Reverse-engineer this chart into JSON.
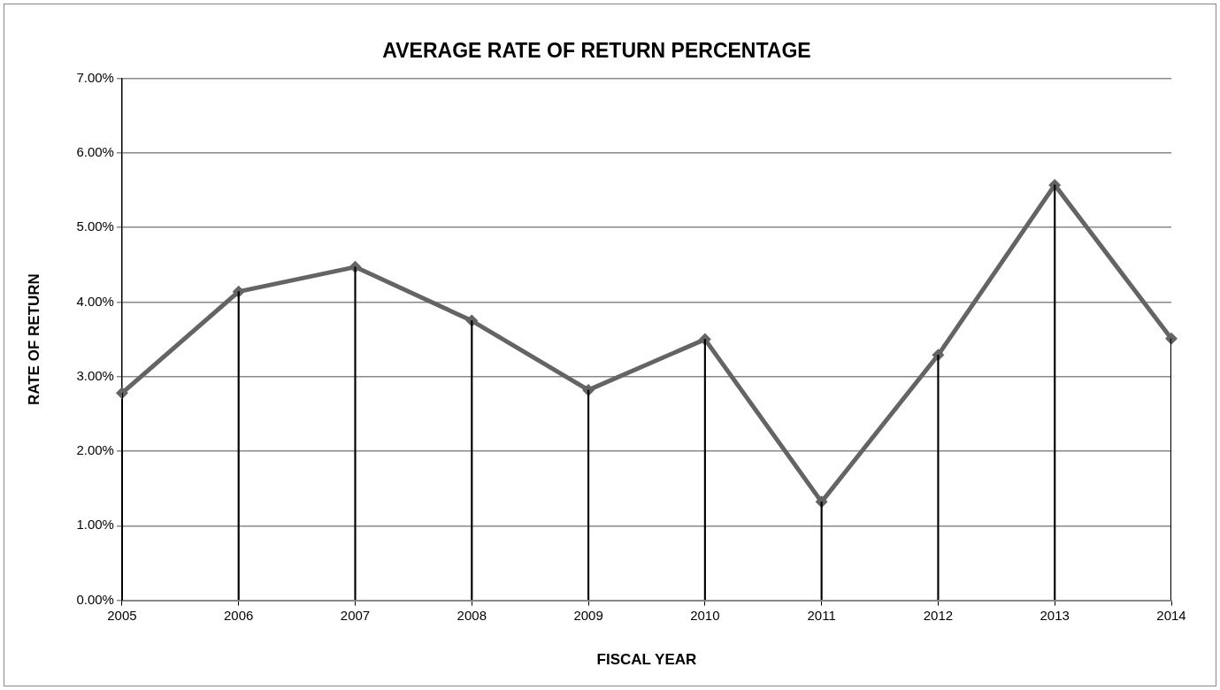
{
  "chart_data": {
    "type": "line",
    "title": "AVERAGE RATE OF RETURN PERCENTAGE",
    "xlabel": "FISCAL YEAR",
    "ylabel": "RATE OF RETURN",
    "categories": [
      "2005",
      "2006",
      "2007",
      "2008",
      "2009",
      "2010",
      "2011",
      "2012",
      "2013",
      "2014"
    ],
    "series": [
      {
        "color": "#646464",
        "values": [
          2.78,
          4.14,
          4.47,
          3.75,
          2.82,
          3.5,
          1.32,
          3.29,
          5.57,
          3.51
        ]
      },
      {
        "type": "bar",
        "color": "#000000",
        "values": [
          2.78,
          4.14,
          4.47,
          3.75,
          2.82,
          3.5,
          1.32,
          3.29,
          5.57,
          3.51
        ]
      }
    ],
    "ylim": [
      0,
      7
    ],
    "yticks": [
      {
        "value": 0,
        "label": "0.00%"
      },
      {
        "value": 1,
        "label": "1.00%"
      },
      {
        "value": 2,
        "label": "2.00%"
      },
      {
        "value": 3,
        "label": "3.00%"
      },
      {
        "value": 4,
        "label": "4.00%"
      },
      {
        "value": 5,
        "label": "5.00%"
      },
      {
        "value": 6,
        "label": "6.00%"
      },
      {
        "value": 7,
        "label": "7.00%"
      }
    ],
    "grid": "y",
    "legend": false,
    "marker": "diamond",
    "line_style": "solid"
  }
}
